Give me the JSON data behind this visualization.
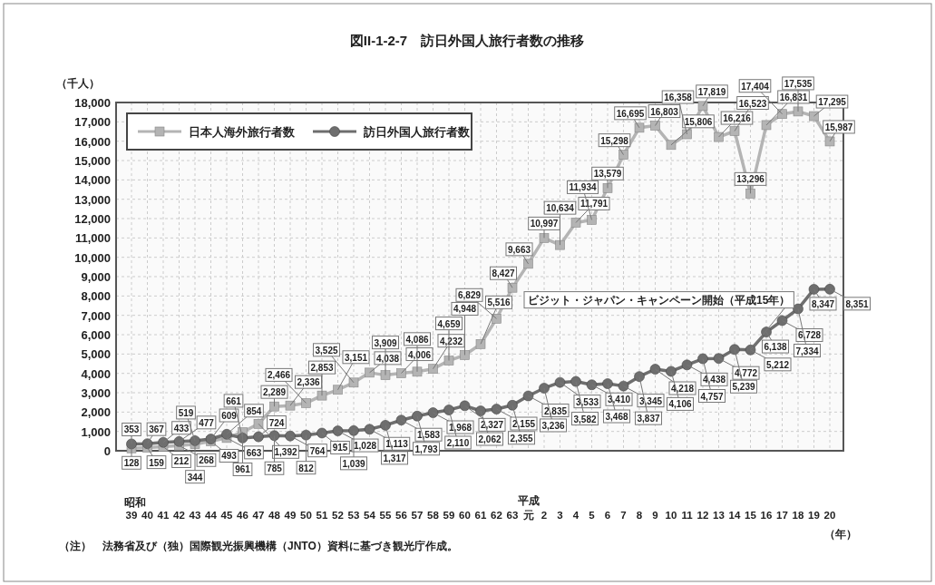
{
  "chart_data": {
    "type": "line",
    "title": "図II-1-2-7　訪日外国人旅行者数の推移",
    "ylabel": "（千人）",
    "xlabel": "（年）",
    "categories": [
      "39",
      "40",
      "41",
      "42",
      "43",
      "44",
      "45",
      "46",
      "47",
      "48",
      "49",
      "50",
      "51",
      "52",
      "53",
      "54",
      "55",
      "56",
      "57",
      "58",
      "59",
      "60",
      "61",
      "62",
      "63",
      "元",
      "2",
      "3",
      "4",
      "5",
      "6",
      "7",
      "8",
      "9",
      "10",
      "11",
      "12",
      "13",
      "14",
      "15",
      "16",
      "17",
      "18",
      "19",
      "20"
    ],
    "series": [
      {
        "name": "日本人海外旅行者数",
        "color": "#b4b4b4",
        "marker": "square",
        "values": [
          128,
          159,
          212,
          268,
          344,
          493,
          663,
          961,
          1392,
          2289,
          2336,
          2466,
          2853,
          3151,
          3525,
          4038,
          3909,
          4006,
          4086,
          4232,
          4659,
          4948,
          5516,
          6829,
          8427,
          9663,
          10997,
          10634,
          11791,
          11934,
          13579,
          15298,
          16695,
          16803,
          15806,
          16358,
          17819,
          16216,
          16523,
          13296,
          16831,
          17404,
          17535,
          17295,
          15987
        ],
        "value_labels": [
          "128",
          "159",
          "212",
          "268",
          "344",
          "493",
          "663",
          "961",
          "1,392",
          "2,289",
          "2,336",
          "2,466",
          "2,853",
          "3,151",
          "3,525",
          "4,038",
          "3,909",
          "4,006",
          "4,086",
          "4,232",
          "4,659",
          "4,948",
          "5,516",
          "6,829",
          "8,427",
          "9,663",
          "10,997",
          "10,634",
          "11,791",
          "11,934",
          "13,579",
          "15,298",
          "16,695",
          "16,803",
          "15,806",
          "16,358",
          "17,819",
          "16,216",
          "16,523",
          "13,296",
          "16,831",
          "17,404",
          "17,535",
          "17,295",
          "15,987"
        ]
      },
      {
        "name": "訪日外国人旅行者数",
        "color": "#6e6e6e",
        "marker": "circle",
        "values": [
          353,
          367,
          433,
          477,
          519,
          609,
          854,
          661,
          724,
          785,
          764,
          812,
          915,
          1028,
          1039,
          1113,
          1317,
          1583,
          1793,
          1968,
          2110,
          2327,
          2062,
          2155,
          2355,
          2835,
          3236,
          3533,
          3582,
          3410,
          3468,
          3345,
          3837,
          4218,
          4106,
          4438,
          4757,
          4772,
          5239,
          5212,
          6138,
          6728,
          7334,
          8347,
          8351
        ],
        "value_labels": [
          "353",
          "367",
          "433",
          "477",
          "519",
          "609",
          "854",
          "661",
          "724",
          "785",
          "764",
          "812",
          "915",
          "1,028",
          "1,039",
          "1,113",
          "1,317",
          "1,583",
          "1,793",
          "1,968",
          "2,110",
          "2,327",
          "2,062",
          "2,155",
          "2,355",
          "2,835",
          "3,236",
          "3,533",
          "3,582",
          "3,410",
          "3,468",
          "3,345",
          "3,837",
          "4,218",
          "4,106",
          "4,438",
          "4,757",
          "4,772",
          "5,239",
          "5,212",
          "6,138",
          "6,728",
          "7,334",
          "8,347",
          "8,351"
        ]
      }
    ],
    "ylim": [
      0,
      18000
    ],
    "yticks": [
      {
        "value": 0,
        "label": "0"
      },
      {
        "value": 1000,
        "label": "1,000"
      },
      {
        "value": 2000,
        "label": "2,000"
      },
      {
        "value": 3000,
        "label": "3,000"
      },
      {
        "value": 4000,
        "label": "4,000"
      },
      {
        "value": 5000,
        "label": "5,000"
      },
      {
        "value": 6000,
        "label": "6,000"
      },
      {
        "value": 7000,
        "label": "7,000"
      },
      {
        "value": 8000,
        "label": "8,000"
      },
      {
        "value": 9000,
        "label": "9,000"
      },
      {
        "value": 10000,
        "label": "10,000"
      },
      {
        "value": 11000,
        "label": "11,000"
      },
      {
        "value": 12000,
        "label": "12,000"
      },
      {
        "value": 13000,
        "label": "13,000"
      },
      {
        "value": 14000,
        "label": "14,000"
      },
      {
        "value": 15000,
        "label": "15,000"
      },
      {
        "value": 16000,
        "label": "16,000"
      },
      {
        "value": 17000,
        "label": "17,000"
      },
      {
        "value": 18000,
        "label": "18,000"
      }
    ],
    "grid": true,
    "legend": "top left",
    "annotations": [
      {
        "text": "ビジット・ジャパン・キャンペーン開始（平成15年）",
        "x": "15",
        "y": 5212
      },
      "昭和",
      "平成",
      "（注）　法務省及び（独）国際観光振興機構（JNTO）資料に基づき観光庁作成。"
    ]
  }
}
